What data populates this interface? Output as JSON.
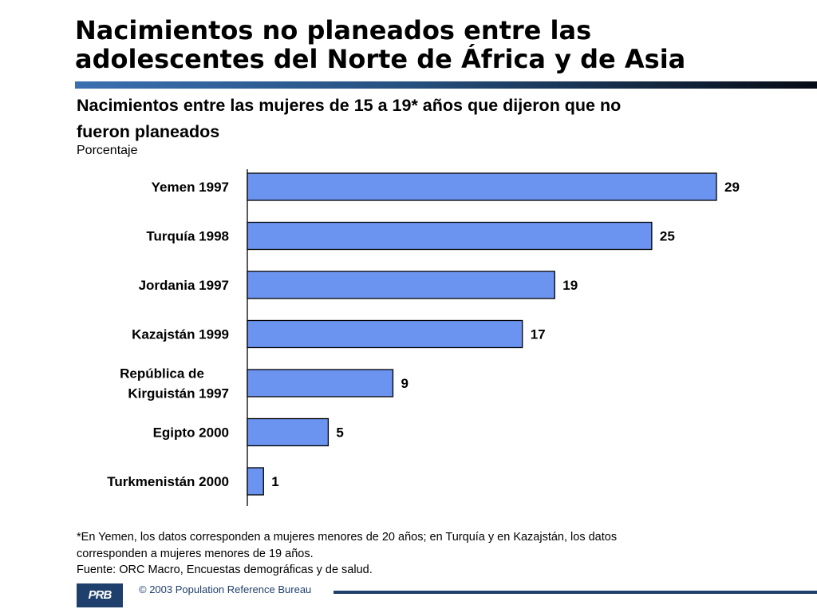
{
  "header": {
    "title_line1": "Nacimientos no planeados entre las",
    "title_line2": "adolescentes del Norte de África y de Asia"
  },
  "chart_data": {
    "type": "bar",
    "orientation": "horizontal",
    "title": "Nacimientos entre las mujeres de 15 a 19* años que dijeron que no fueron planeados",
    "title_line1": "Nacimientos entre las mujeres de 15 a 19* años que dijeron que no",
    "title_line2": "fueron planeados",
    "ylabel": "Porcentaje",
    "categories": [
      [
        "Yemen 1997"
      ],
      [
        "Turquía 1998"
      ],
      [
        "Jordania 1997"
      ],
      [
        "Kazajstán 1999"
      ],
      [
        "República de",
        "Kirguistán  1997"
      ],
      [
        "Egipto 2000"
      ],
      [
        "Turkmenistán 2000"
      ]
    ],
    "values": [
      29,
      25,
      19,
      17,
      9,
      5,
      1
    ],
    "xlim": [
      0,
      29
    ],
    "bar_color": "#6b93f0",
    "data_labels": true,
    "grid": false
  },
  "footnotes": {
    "note_line1": "*En Yemen, los datos corresponden a mujeres menores de 20 años; en Turquía y en Kazajstán, los datos",
    "note_line2": "corresponden a mujeres menores de 19 años.",
    "source": "Fuente: ORC Macro, Encuestas demográficas y de salud."
  },
  "footer": {
    "logo_text": "PRB",
    "copyright": "© 2003 Population Reference Bureau",
    "brand_color": "#1f3f6d"
  }
}
